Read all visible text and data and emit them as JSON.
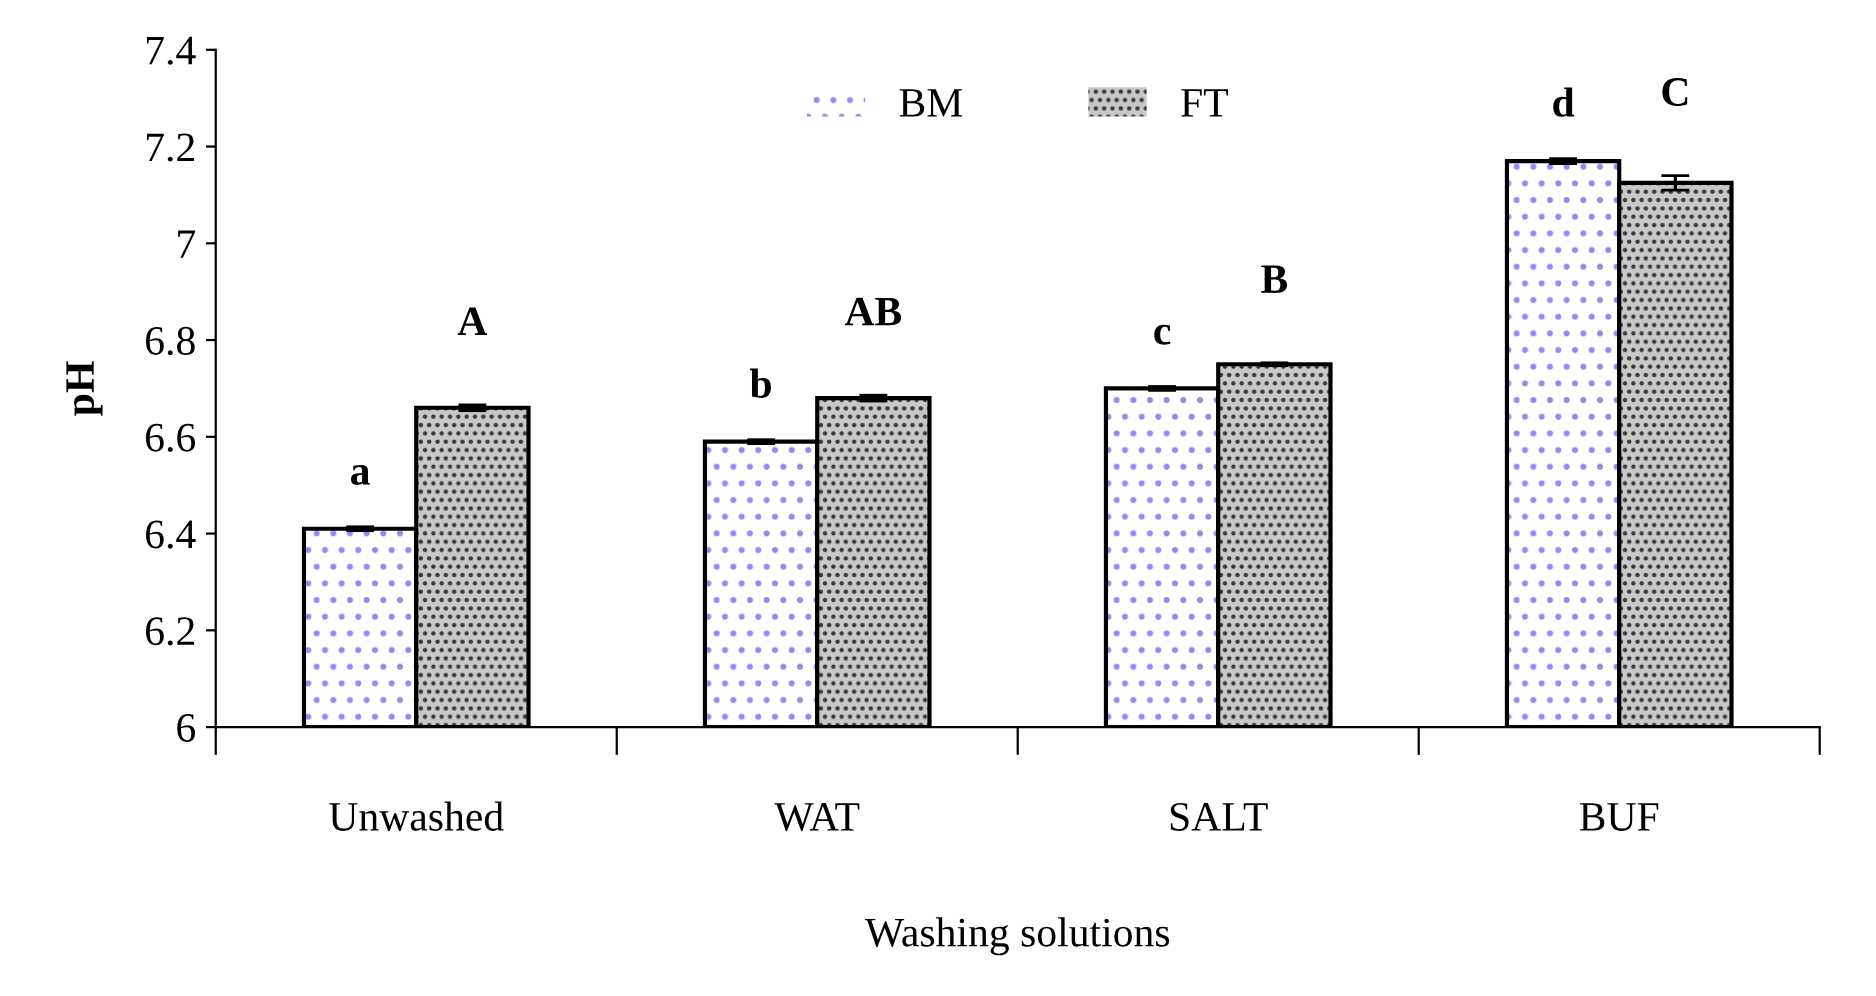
{
  "chart_data": {
    "type": "bar",
    "xlabel": "Washing solutions",
    "ylabel": "pH",
    "categories": [
      "Unwashed",
      "WAT",
      "SALT",
      "BUF"
    ],
    "series": [
      {
        "name": "BM",
        "color": "#ffffff",
        "values": [
          6.41,
          6.59,
          6.7,
          7.17
        ],
        "errors": [
          0.004,
          0.004,
          0.004,
          0.005
        ]
      },
      {
        "name": "FT",
        "color": "#c8c8c8",
        "values": [
          6.66,
          6.68,
          6.75,
          7.125
        ],
        "errors": [
          0.006,
          0.006,
          0.003,
          0.015
        ]
      }
    ],
    "ylim": [
      6,
      7.4
    ],
    "yticks": [
      6,
      6.2,
      6.4,
      6.6,
      6.8,
      7,
      7.2,
      7.4
    ],
    "grid": false,
    "legend": "top",
    "annotations": [
      "a",
      "A",
      "b",
      "AB",
      "c",
      "B",
      "d",
      "C"
    ]
  }
}
